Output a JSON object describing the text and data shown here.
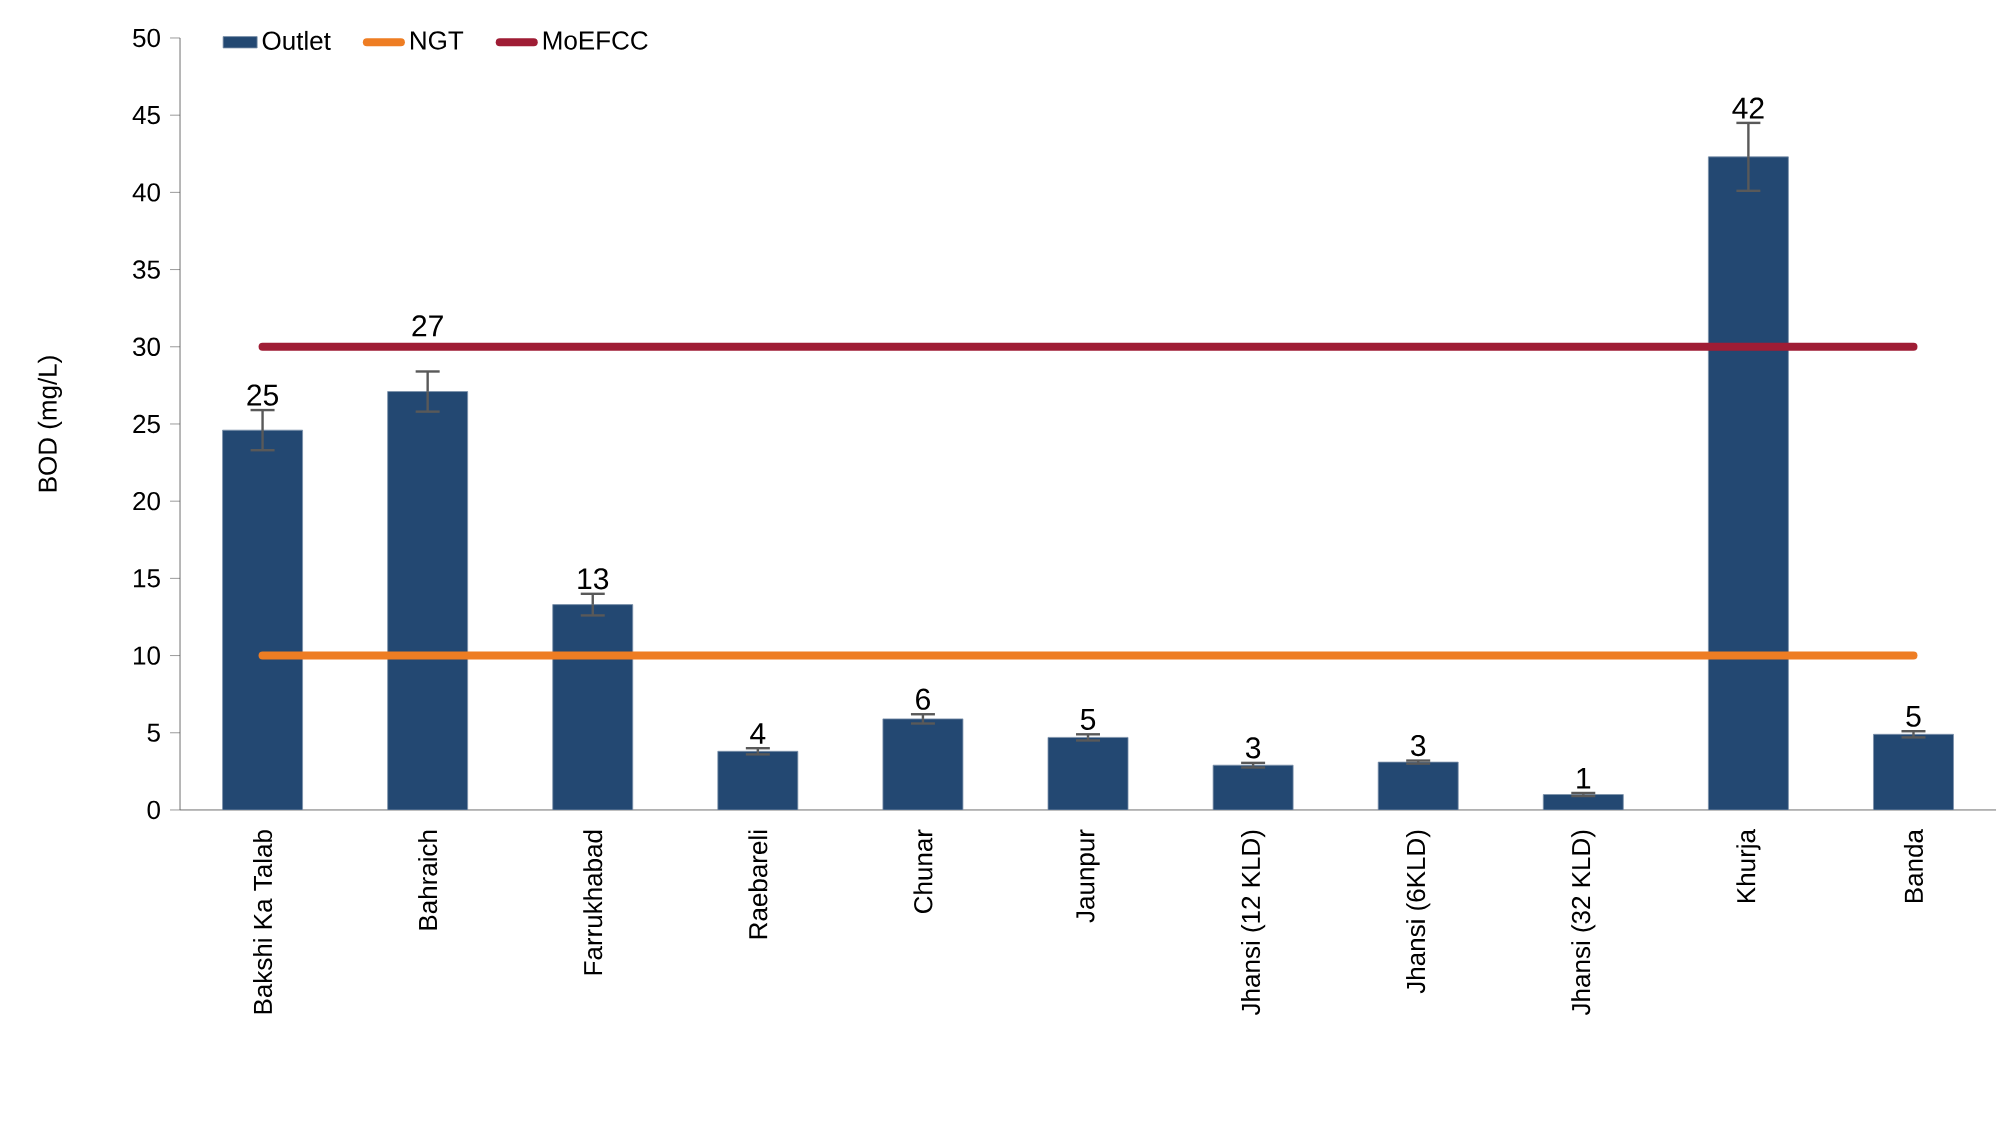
{
  "chart_data": {
    "type": "bar",
    "ylabel": "BOD (mg/L)",
    "categories": [
      "Bakshi Ka Talab",
      "Bahraich",
      "Farrukhabad",
      "Raebareli",
      "Chunar",
      "Jaunpur",
      "Jhansi (12 KLD)",
      "Jhansi (6KLD)",
      "Jhansi (32 KLD)",
      "Khurja",
      "Banda"
    ],
    "series": [
      {
        "name": "Outlet",
        "color": "#234872",
        "values": [
          24.6,
          27.1,
          13.3,
          3.8,
          5.9,
          4.7,
          2.9,
          3.1,
          1.0,
          42.3,
          4.9
        ],
        "errors": [
          1.3,
          1.3,
          0.7,
          0.2,
          0.3,
          0.2,
          0.15,
          0.1,
          0.1,
          2.2,
          0.2
        ],
        "value_labels": [
          "25",
          "27",
          "13",
          "4",
          "6",
          "5",
          "3",
          "3",
          "1",
          "42",
          "5"
        ]
      }
    ],
    "ref_lines": [
      {
        "axis": "y",
        "value": 10,
        "label": "NGT",
        "color": "#ee7d23"
      },
      {
        "axis": "y",
        "value": 30,
        "label": "MoEFCC",
        "color": "#9f1d35"
      }
    ],
    "ylim": [
      0,
      50
    ],
    "yticks": [
      0,
      5,
      10,
      15,
      20,
      25,
      30,
      35,
      40,
      45,
      50
    ],
    "grid": false,
    "legend": "top left"
  }
}
